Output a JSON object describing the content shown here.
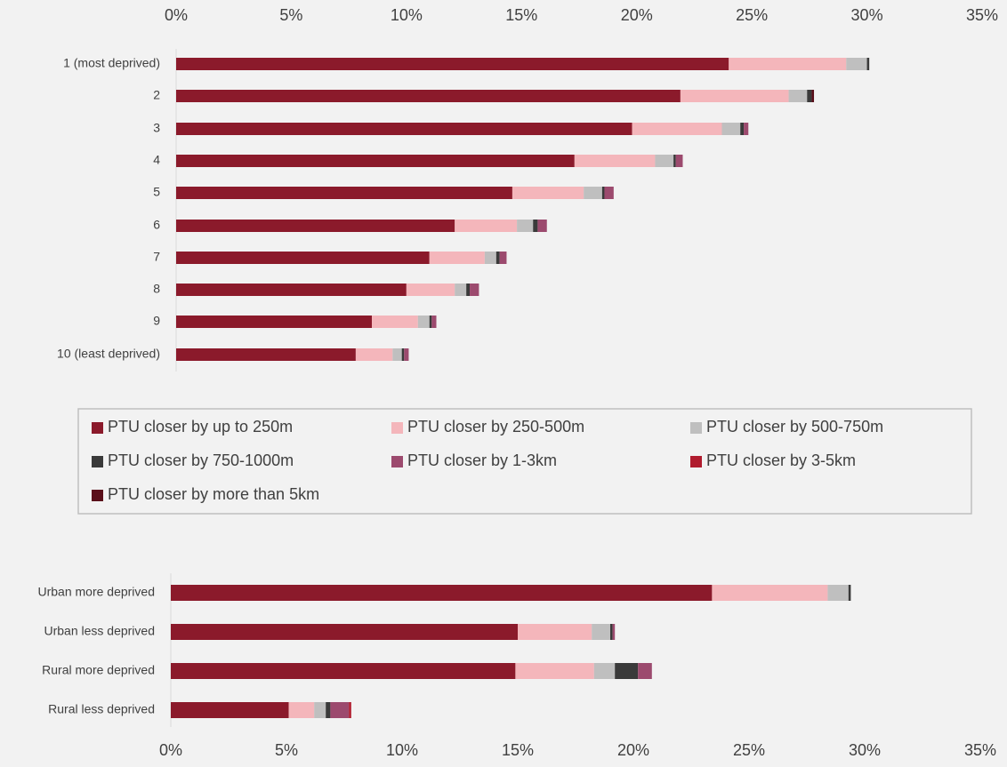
{
  "chart_data": [
    {
      "type": "stacked-bar-horizontal",
      "categories": [
        "1 (most deprived)",
        "2",
        "3",
        "4",
        "5",
        "6",
        "7",
        "8",
        "9",
        "10 (least deprived)"
      ],
      "series": [
        {
          "name": "PTU closer by up to 250m",
          "color": "#8b1a2b",
          "values": [
            24.0,
            21.9,
            19.8,
            17.3,
            14.6,
            12.1,
            11.0,
            10.0,
            8.5,
            7.8
          ]
        },
        {
          "name": "PTU closer by 250-500m",
          "color": "#f4b6bb",
          "values": [
            5.1,
            4.7,
            3.9,
            3.5,
            3.1,
            2.7,
            2.4,
            2.1,
            2.0,
            1.6
          ]
        },
        {
          "name": "PTU closer by 500-750m",
          "color": "#bfbfbf",
          "values": [
            0.9,
            0.8,
            0.8,
            0.8,
            0.8,
            0.7,
            0.5,
            0.5,
            0.5,
            0.4
          ]
        },
        {
          "name": "PTU closer by 750-1000m",
          "color": "#3a3a3a",
          "values": [
            0.1,
            0.2,
            0.15,
            0.1,
            0.1,
            0.2,
            0.15,
            0.15,
            0.1,
            0.1
          ]
        },
        {
          "name": "PTU closer by 1-3km",
          "color": "#9c4a6e",
          "values": [
            0,
            0,
            0.2,
            0.3,
            0.4,
            0.4,
            0.3,
            0.4,
            0.2,
            0.2
          ]
        },
        {
          "name": "PTU closer by 3-5km",
          "color": "#b01c2e",
          "values": [
            0,
            0,
            0,
            0,
            0,
            0,
            0,
            0,
            0,
            0
          ]
        },
        {
          "name": "PTU closer by more than 5km",
          "color": "#5a0f1a",
          "values": [
            0,
            0.1,
            0,
            0,
            0,
            0,
            0,
            0,
            0,
            0
          ]
        }
      ],
      "xlim": [
        0,
        35
      ],
      "xticks": [
        {
          "value": 0,
          "label": "0%"
        },
        {
          "value": 5,
          "label": "5%"
        },
        {
          "value": 10,
          "label": "10%"
        },
        {
          "value": 15,
          "label": "15%"
        },
        {
          "value": 20,
          "label": "20%"
        },
        {
          "value": 25,
          "label": "25%"
        },
        {
          "value": 30,
          "label": "30%"
        },
        {
          "value": 35,
          "label": "35%"
        }
      ]
    },
    {
      "type": "stacked-bar-horizontal",
      "categories": [
        "Urban more deprived",
        "Urban less deprived",
        "Rural more deprived",
        "Rural less deprived"
      ],
      "series": [
        {
          "color": "#8b1a2b",
          "values": [
            23.4,
            15.0,
            14.9,
            5.1
          ]
        },
        {
          "color": "#f4b6bb",
          "values": [
            5.0,
            3.2,
            3.4,
            1.1
          ]
        },
        {
          "color": "#bfbfbf",
          "values": [
            0.9,
            0.8,
            0.9,
            0.5
          ]
        },
        {
          "color": "#3a3a3a",
          "values": [
            0.1,
            0.1,
            1.0,
            0.2
          ]
        },
        {
          "color": "#9c4a6e",
          "values": [
            0,
            0.1,
            0.6,
            0.8
          ]
        },
        {
          "color": "#b01c2e",
          "values": [
            0,
            0,
            0,
            0.1
          ]
        },
        {
          "color": "#5a0f1a",
          "values": [
            0,
            0,
            0,
            0
          ]
        }
      ],
      "xlim": [
        0,
        35
      ],
      "xticks": [
        {
          "value": 0,
          "label": "0%"
        },
        {
          "value": 5,
          "label": "5%"
        },
        {
          "value": 10,
          "label": "10%"
        },
        {
          "value": 15,
          "label": "15%"
        },
        {
          "value": 20,
          "label": "20%"
        },
        {
          "value": 25,
          "label": "25%"
        },
        {
          "value": 30,
          "label": "30%"
        },
        {
          "value": 35,
          "label": "35%"
        }
      ]
    }
  ]
}
